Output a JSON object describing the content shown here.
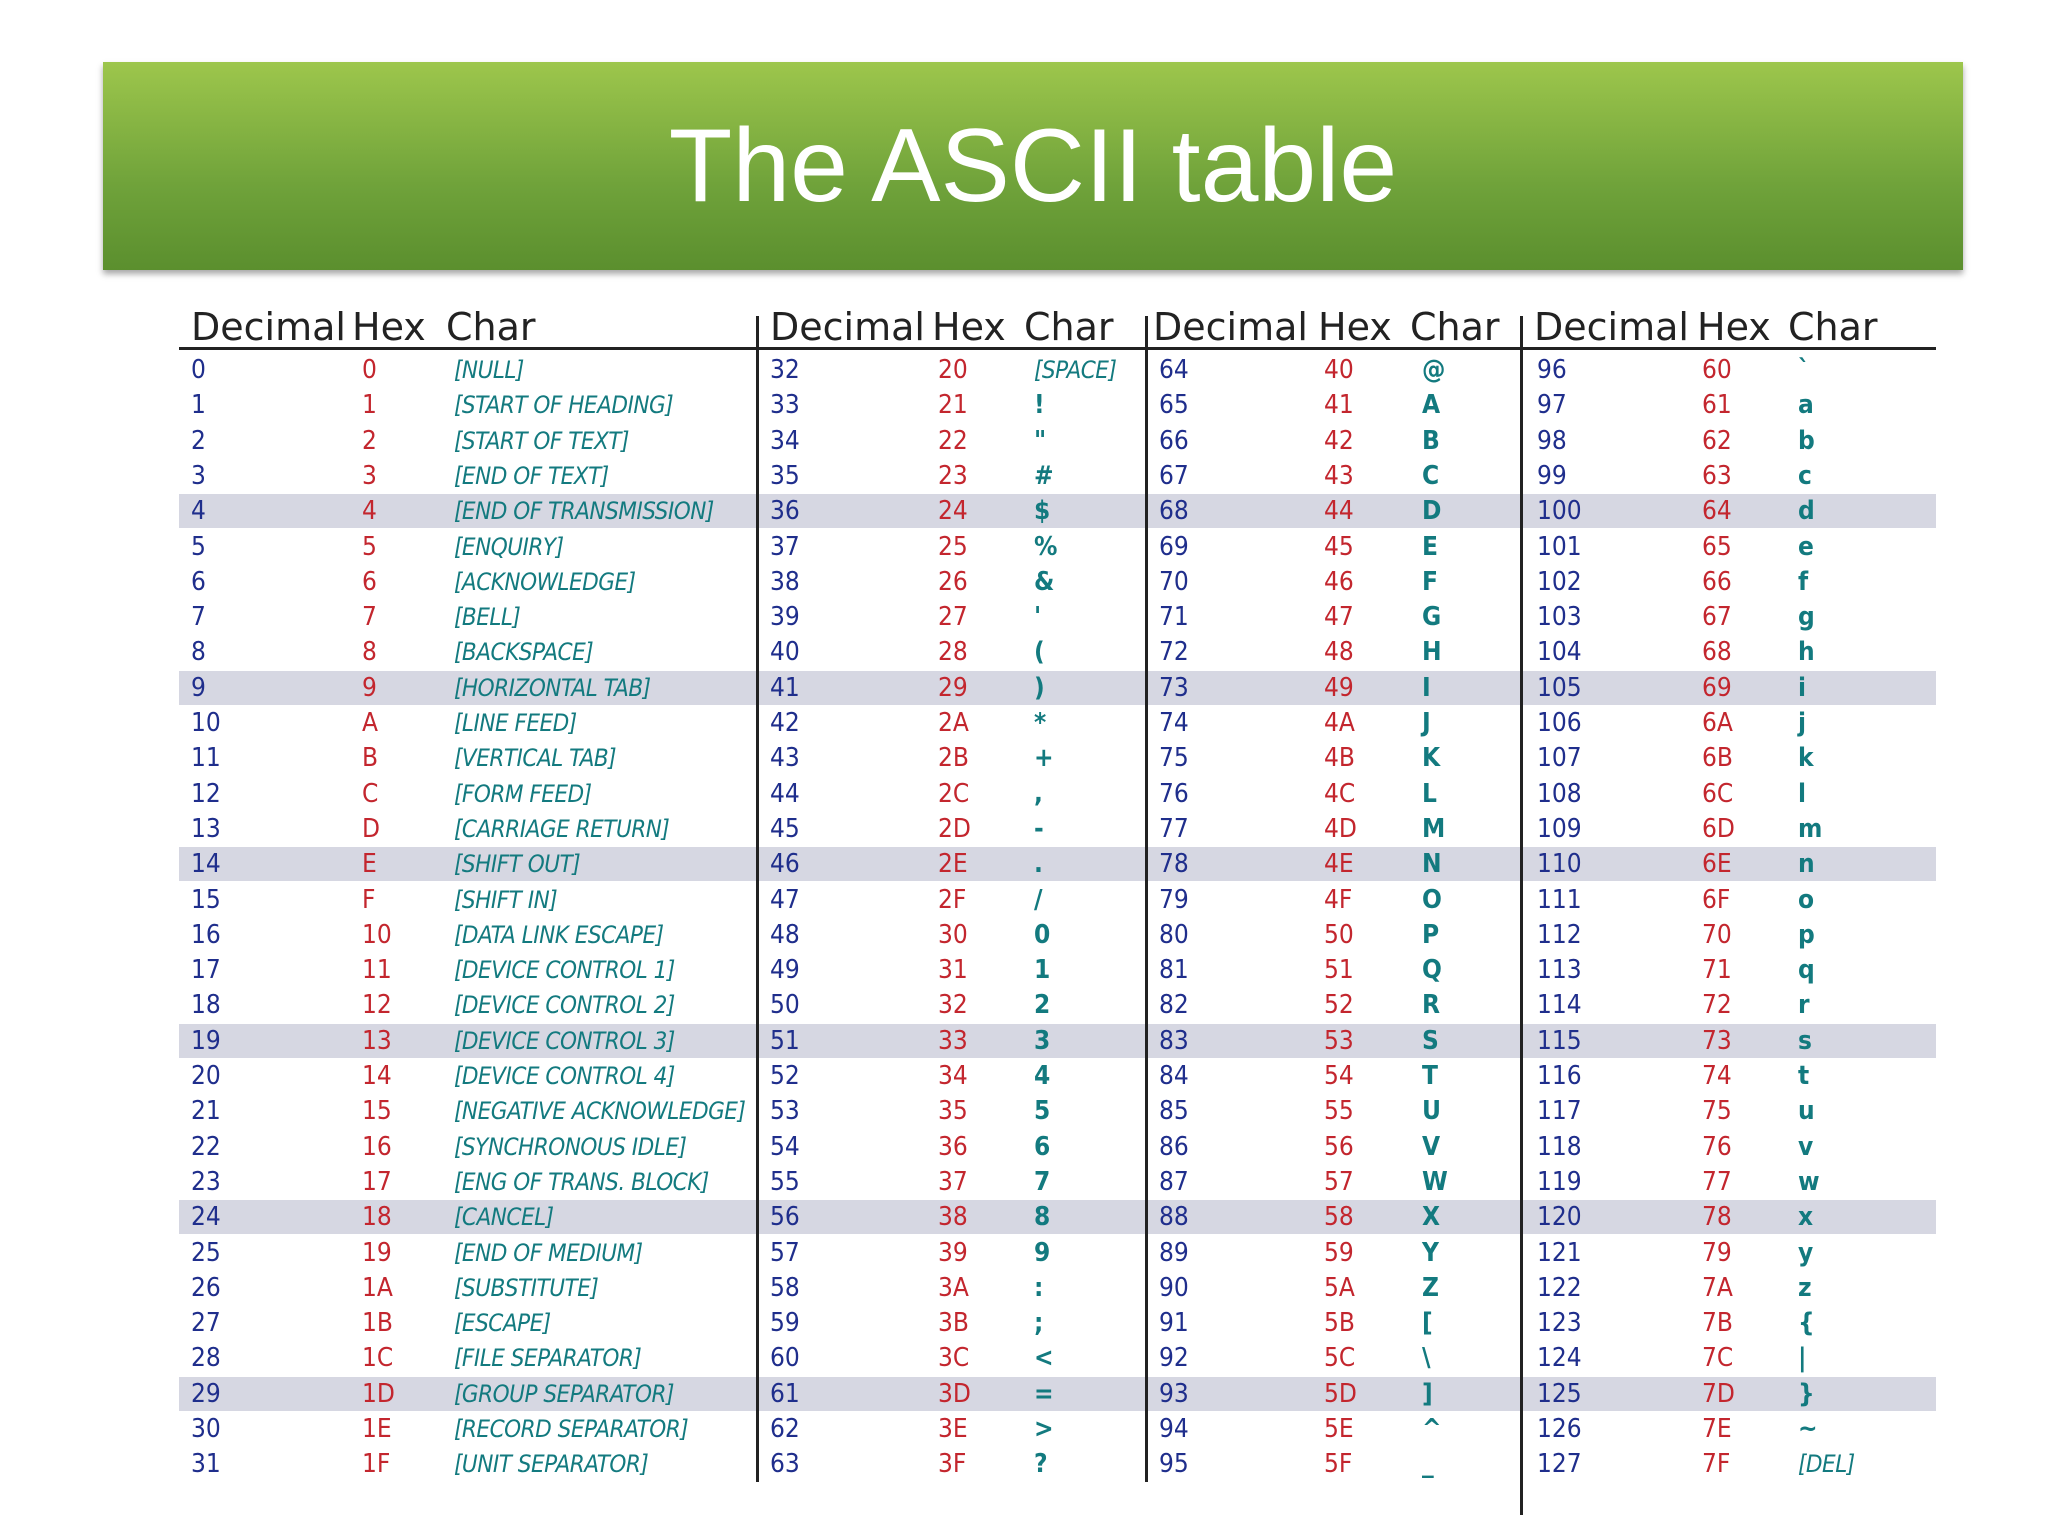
{
  "title": "The ASCII table",
  "table": {
    "groups": [
      {
        "headers": [
          "Decimal",
          "Hex",
          "Char"
        ],
        "rows": [
          [
            0,
            "0",
            "[NULL]"
          ],
          [
            1,
            "1",
            "[START OF HEADING]"
          ],
          [
            2,
            "2",
            "[START OF TEXT]"
          ],
          [
            3,
            "3",
            "[END OF TEXT]"
          ],
          [
            4,
            "4",
            "[END OF TRANSMISSION]"
          ],
          [
            5,
            "5",
            "[ENQUIRY]"
          ],
          [
            6,
            "6",
            "[ACKNOWLEDGE]"
          ],
          [
            7,
            "7",
            "[BELL]"
          ],
          [
            8,
            "8",
            "[BACKSPACE]"
          ],
          [
            9,
            "9",
            "[HORIZONTAL TAB]"
          ],
          [
            10,
            "A",
            "[LINE FEED]"
          ],
          [
            11,
            "B",
            "[VERTICAL TAB]"
          ],
          [
            12,
            "C",
            "[FORM FEED]"
          ],
          [
            13,
            "D",
            "[CARRIAGE RETURN]"
          ],
          [
            14,
            "E",
            "[SHIFT OUT]"
          ],
          [
            15,
            "F",
            "[SHIFT IN]"
          ],
          [
            16,
            "10",
            "[DATA LINK ESCAPE]"
          ],
          [
            17,
            "11",
            "[DEVICE CONTROL 1]"
          ],
          [
            18,
            "12",
            "[DEVICE CONTROL 2]"
          ],
          [
            19,
            "13",
            "[DEVICE CONTROL 3]"
          ],
          [
            20,
            "14",
            "[DEVICE CONTROL 4]"
          ],
          [
            21,
            "15",
            "[NEGATIVE ACKNOWLEDGE]"
          ],
          [
            22,
            "16",
            "[SYNCHRONOUS IDLE]"
          ],
          [
            23,
            "17",
            "[ENG OF TRANS. BLOCK]"
          ],
          [
            24,
            "18",
            "[CANCEL]"
          ],
          [
            25,
            "19",
            "[END OF MEDIUM]"
          ],
          [
            26,
            "1A",
            "[SUBSTITUTE]"
          ],
          [
            27,
            "1B",
            "[ESCAPE]"
          ],
          [
            28,
            "1C",
            "[FILE SEPARATOR]"
          ],
          [
            29,
            "1D",
            "[GROUP SEPARATOR]"
          ],
          [
            30,
            "1E",
            "[RECORD SEPARATOR]"
          ],
          [
            31,
            "1F",
            "[UNIT SEPARATOR]"
          ]
        ]
      },
      {
        "headers": [
          "Decimal",
          "Hex",
          "Char"
        ],
        "rows": [
          [
            32,
            "20",
            "[SPACE]"
          ],
          [
            33,
            "21",
            "!"
          ],
          [
            34,
            "22",
            "\""
          ],
          [
            35,
            "23",
            "#"
          ],
          [
            36,
            "24",
            "$"
          ],
          [
            37,
            "25",
            "%"
          ],
          [
            38,
            "26",
            "&"
          ],
          [
            39,
            "27",
            "'"
          ],
          [
            40,
            "28",
            "("
          ],
          [
            41,
            "29",
            ")"
          ],
          [
            42,
            "2A",
            "*"
          ],
          [
            43,
            "2B",
            "+"
          ],
          [
            44,
            "2C",
            ","
          ],
          [
            45,
            "2D",
            "-"
          ],
          [
            46,
            "2E",
            "."
          ],
          [
            47,
            "2F",
            "/"
          ],
          [
            48,
            "30",
            "0"
          ],
          [
            49,
            "31",
            "1"
          ],
          [
            50,
            "32",
            "2"
          ],
          [
            51,
            "33",
            "3"
          ],
          [
            52,
            "34",
            "4"
          ],
          [
            53,
            "35",
            "5"
          ],
          [
            54,
            "36",
            "6"
          ],
          [
            55,
            "37",
            "7"
          ],
          [
            56,
            "38",
            "8"
          ],
          [
            57,
            "39",
            "9"
          ],
          [
            58,
            "3A",
            ":"
          ],
          [
            59,
            "3B",
            ";"
          ],
          [
            60,
            "3C",
            "<"
          ],
          [
            61,
            "3D",
            "="
          ],
          [
            62,
            "3E",
            ">"
          ],
          [
            63,
            "3F",
            "?"
          ]
        ]
      },
      {
        "headers": [
          "Decimal",
          "Hex",
          "Char"
        ],
        "rows": [
          [
            64,
            "40",
            "@"
          ],
          [
            65,
            "41",
            "A"
          ],
          [
            66,
            "42",
            "B"
          ],
          [
            67,
            "43",
            "C"
          ],
          [
            68,
            "44",
            "D"
          ],
          [
            69,
            "45",
            "E"
          ],
          [
            70,
            "46",
            "F"
          ],
          [
            71,
            "47",
            "G"
          ],
          [
            72,
            "48",
            "H"
          ],
          [
            73,
            "49",
            "I"
          ],
          [
            74,
            "4A",
            "J"
          ],
          [
            75,
            "4B",
            "K"
          ],
          [
            76,
            "4C",
            "L"
          ],
          [
            77,
            "4D",
            "M"
          ],
          [
            78,
            "4E",
            "N"
          ],
          [
            79,
            "4F",
            "O"
          ],
          [
            80,
            "50",
            "P"
          ],
          [
            81,
            "51",
            "Q"
          ],
          [
            82,
            "52",
            "R"
          ],
          [
            83,
            "53",
            "S"
          ],
          [
            84,
            "54",
            "T"
          ],
          [
            85,
            "55",
            "U"
          ],
          [
            86,
            "56",
            "V"
          ],
          [
            87,
            "57",
            "W"
          ],
          [
            88,
            "58",
            "X"
          ],
          [
            89,
            "59",
            "Y"
          ],
          [
            90,
            "5A",
            "Z"
          ],
          [
            91,
            "5B",
            "["
          ],
          [
            92,
            "5C",
            "\\"
          ],
          [
            93,
            "5D",
            "]"
          ],
          [
            94,
            "5E",
            "^"
          ],
          [
            95,
            "5F",
            "_"
          ]
        ]
      },
      {
        "headers": [
          "Decimal",
          "Hex",
          "Char"
        ],
        "rows": [
          [
            96,
            "60",
            "`"
          ],
          [
            97,
            "61",
            "a"
          ],
          [
            98,
            "62",
            "b"
          ],
          [
            99,
            "63",
            "c"
          ],
          [
            100,
            "64",
            "d"
          ],
          [
            101,
            "65",
            "e"
          ],
          [
            102,
            "66",
            "f"
          ],
          [
            103,
            "67",
            "g"
          ],
          [
            104,
            "68",
            "h"
          ],
          [
            105,
            "69",
            "i"
          ],
          [
            106,
            "6A",
            "j"
          ],
          [
            107,
            "6B",
            "k"
          ],
          [
            108,
            "6C",
            "l"
          ],
          [
            109,
            "6D",
            "m"
          ],
          [
            110,
            "6E",
            "n"
          ],
          [
            111,
            "6F",
            "o"
          ],
          [
            112,
            "70",
            "p"
          ],
          [
            113,
            "71",
            "q"
          ],
          [
            114,
            "72",
            "r"
          ],
          [
            115,
            "73",
            "s"
          ],
          [
            116,
            "74",
            "t"
          ],
          [
            117,
            "75",
            "u"
          ],
          [
            118,
            "76",
            "v"
          ],
          [
            119,
            "77",
            "w"
          ],
          [
            120,
            "78",
            "x"
          ],
          [
            121,
            "79",
            "y"
          ],
          [
            122,
            "7A",
            "z"
          ],
          [
            123,
            "7B",
            "{"
          ],
          [
            124,
            "7C",
            "|"
          ],
          [
            125,
            "7D",
            "}"
          ],
          [
            126,
            "7E",
            "~"
          ],
          [
            127,
            "7F",
            "[DEL]"
          ]
        ]
      }
    ]
  }
}
